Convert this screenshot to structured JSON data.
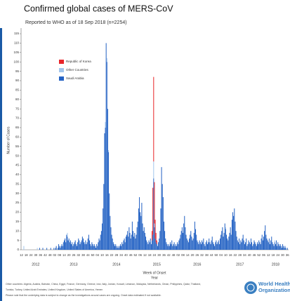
{
  "chart_data": {
    "type": "bar",
    "stacked": true,
    "title": "Confirmed global cases of MERS-CoV",
    "subtitle": "Reported to WHO as of 18 Sep 2018 (n=2254)",
    "y_label": "Number of Cases",
    "x_label": "Week of Onset",
    "x_label2": "Year",
    "ylim": [
      0,
      118
    ],
    "yticks": [
      0,
      5,
      10,
      15,
      20,
      25,
      30,
      35,
      40,
      45,
      50,
      55,
      60,
      65,
      70,
      75,
      80,
      85,
      90,
      95,
      100,
      105,
      110,
      115
    ],
    "grid": false,
    "legend": "upper-left",
    "categories": [
      "12",
      null,
      null,
      null,
      null,
      null,
      "18",
      null,
      null,
      null,
      null,
      null,
      "24",
      null,
      null,
      null,
      null,
      null,
      "30",
      null,
      null,
      null,
      null,
      null,
      "36",
      null,
      null,
      null,
      null,
      null,
      "42",
      null,
      null,
      null,
      null,
      null,
      "48",
      null,
      null,
      null,
      null,
      null,
      "02",
      null,
      null,
      null,
      null,
      null,
      "08",
      null,
      null,
      null,
      null,
      null,
      "14",
      null,
      null,
      null,
      null,
      null,
      "20",
      null,
      null,
      null,
      null,
      null,
      "26",
      null,
      null,
      null,
      null,
      null,
      "32",
      null,
      null,
      null,
      null,
      null,
      "38",
      null,
      null,
      null,
      null,
      null,
      "44",
      null,
      null,
      null,
      null,
      null,
      "50",
      null,
      null,
      null,
      null,
      null,
      "04",
      null,
      null,
      null,
      null,
      null,
      "10",
      null,
      null,
      null,
      null,
      null,
      "16",
      null,
      null,
      null,
      null,
      null,
      "22",
      null,
      null,
      null,
      null,
      null,
      "28",
      null,
      null,
      null,
      null,
      null,
      "34",
      null,
      null,
      null,
      null,
      null,
      "40",
      null,
      null,
      null,
      null,
      null,
      "46",
      null,
      null,
      null,
      null,
      null,
      "52",
      null,
      null,
      null,
      null,
      null,
      "06",
      null,
      null,
      null,
      null,
      null,
      "12",
      null,
      null,
      null,
      null,
      null,
      "18",
      null,
      null,
      null,
      null,
      null,
      "24",
      null,
      null,
      null,
      null,
      null,
      "30",
      null,
      null,
      null,
      null,
      null,
      "36",
      null,
      null,
      null,
      null,
      null,
      "42",
      null,
      null,
      null,
      null,
      null,
      "48",
      null,
      null,
      null,
      null,
      null,
      "02",
      null,
      null,
      null,
      null,
      null,
      "08",
      null,
      null,
      null,
      null,
      null,
      "14",
      null,
      null,
      null,
      null,
      null,
      "20",
      null,
      null,
      null,
      null,
      null,
      "26",
      null,
      null,
      null,
      null,
      null,
      "32",
      null,
      null,
      null,
      null,
      null,
      "38",
      null,
      null,
      null,
      null,
      null,
      "44",
      null,
      null,
      null,
      null,
      null,
      "50",
      null,
      null,
      null,
      null,
      null,
      "04",
      null,
      null,
      null,
      null,
      null,
      "10",
      null,
      null,
      null,
      null,
      null,
      "16",
      null,
      null,
      null,
      null,
      null,
      "22",
      null,
      null,
      null,
      null,
      null,
      "28",
      null,
      null,
      null,
      null,
      null,
      "34",
      null,
      null,
      null,
      null,
      null,
      "40",
      null,
      null,
      null,
      null,
      null,
      "46",
      null,
      null,
      null,
      null,
      null,
      "52",
      null,
      null,
      null,
      null,
      null,
      "06",
      null,
      null,
      null,
      null,
      null,
      "12",
      null,
      null,
      null,
      null,
      null,
      "18",
      null,
      null,
      null,
      null,
      null,
      "24",
      null,
      null,
      null,
      null,
      null,
      "30",
      null,
      null,
      null,
      null,
      null,
      "36",
      null
    ],
    "years": [
      "2012",
      "2013",
      "2014",
      "2015",
      "2016",
      "2017",
      "2018"
    ],
    "series": [
      {
        "name": "Saudi Arabia",
        "color": "#2563c4",
        "values": [
          0,
          0,
          0,
          0,
          0,
          0,
          0,
          0,
          0,
          0,
          0,
          0,
          0,
          0,
          0,
          0,
          0,
          0,
          0,
          0,
          0,
          0,
          0,
          1,
          0,
          0,
          0,
          1,
          0,
          0,
          0,
          0,
          1,
          0,
          0,
          0,
          0,
          1,
          0,
          0,
          0,
          1,
          0,
          1,
          2,
          0,
          1,
          3,
          2,
          1,
          2,
          3,
          2,
          4,
          5,
          6,
          4,
          8,
          7,
          5,
          6,
          4,
          5,
          3,
          4,
          2,
          3,
          4,
          5,
          3,
          2,
          4,
          6,
          5,
          3,
          4,
          5,
          7,
          6,
          4,
          3,
          5,
          3,
          4,
          6,
          8,
          5,
          3,
          2,
          4,
          3,
          2,
          3,
          2,
          1,
          3,
          2,
          4,
          6,
          5,
          8,
          10,
          14,
          22,
          35,
          62,
          65,
          110,
          100,
          75,
          52,
          30,
          18,
          12,
          8,
          6,
          4,
          3,
          2,
          3,
          2,
          1,
          2,
          1,
          2,
          3,
          2,
          4,
          3,
          5,
          6,
          4,
          7,
          8,
          10,
          7,
          12,
          9,
          6,
          8,
          15,
          10,
          7,
          9,
          6,
          8,
          12,
          15,
          22,
          28,
          20,
          18,
          25,
          14,
          10,
          12,
          9,
          7,
          5,
          4,
          3,
          5,
          4,
          6,
          3,
          5,
          8,
          38,
          12,
          6,
          4,
          3,
          2,
          4,
          6,
          10,
          22,
          44,
          35,
          28,
          15,
          10,
          6,
          4,
          3,
          2,
          3,
          2,
          4,
          3,
          5,
          2,
          3,
          4,
          2,
          3,
          2,
          4,
          3,
          5,
          6,
          8,
          10,
          12,
          9,
          14,
          18,
          12,
          8,
          6,
          5,
          4,
          6,
          8,
          10,
          7,
          5,
          6,
          9,
          15,
          11,
          8,
          5,
          4,
          3,
          5,
          4,
          3,
          5,
          4,
          6,
          3,
          2,
          4,
          5,
          3,
          4,
          6,
          4,
          3,
          5,
          7,
          4,
          3,
          2,
          4,
          5,
          3,
          4,
          5,
          3,
          6,
          8,
          10,
          12,
          7,
          9,
          14,
          11,
          8,
          6,
          5,
          7,
          9,
          12,
          8,
          16,
          20,
          18,
          22,
          15,
          10,
          7,
          5,
          4,
          6,
          3,
          5,
          4,
          6,
          8,
          5,
          3,
          4,
          6,
          2,
          3,
          5,
          4,
          3,
          6,
          4,
          2,
          3,
          5,
          4,
          3,
          2,
          4,
          3,
          5,
          4,
          3,
          6,
          8,
          5,
          7,
          10,
          13,
          8,
          6,
          5,
          4,
          6,
          3,
          5,
          7,
          4,
          3,
          2,
          4,
          3,
          5,
          2,
          4,
          3,
          2,
          3,
          2,
          1,
          3,
          2,
          1,
          2,
          1,
          0,
          1,
          0
        ]
      },
      {
        "name": "Other Countries",
        "color": "#a3c6ec",
        "values": [
          0,
          0,
          0,
          2,
          0,
          0,
          0,
          0,
          0,
          0,
          0,
          0,
          0,
          0,
          0,
          0,
          0,
          0,
          0,
          0,
          1,
          0,
          0,
          0,
          0,
          0,
          0,
          0,
          0,
          0,
          0,
          0,
          0,
          0,
          0,
          0,
          0,
          0,
          0,
          0,
          0,
          0,
          0,
          0,
          0,
          0,
          0,
          0,
          0,
          0,
          0,
          0,
          0,
          0,
          0,
          0,
          0,
          0,
          2,
          0,
          0,
          0,
          0,
          0,
          0,
          0,
          0,
          0,
          0,
          0,
          0,
          0,
          0,
          0,
          0,
          0,
          0,
          0,
          0,
          0,
          1,
          0,
          0,
          0,
          0,
          0,
          0,
          0,
          0,
          0,
          0,
          0,
          0,
          0,
          0,
          0,
          0,
          0,
          0,
          0,
          0,
          0,
          0,
          0,
          0,
          0,
          3,
          0,
          2,
          0,
          1,
          0,
          0,
          0,
          0,
          0,
          0,
          0,
          0,
          0,
          0,
          0,
          0,
          0,
          0,
          0,
          0,
          0,
          0,
          0,
          0,
          0,
          0,
          0,
          0,
          0,
          0,
          0,
          0,
          0,
          0,
          0,
          0,
          0,
          0,
          0,
          0,
          0,
          0,
          0,
          0,
          0,
          0,
          0,
          0,
          0,
          0,
          0,
          0,
          0,
          0,
          0,
          0,
          0,
          0,
          0,
          0,
          9,
          2,
          0,
          0,
          0,
          0,
          0,
          0,
          0,
          0,
          0,
          0,
          0,
          0,
          0,
          0,
          0,
          0,
          0,
          0,
          0,
          0,
          0,
          0,
          0,
          0,
          0,
          0,
          0,
          0,
          0,
          0,
          0,
          0,
          0,
          0,
          0,
          0,
          0,
          0,
          0,
          0,
          0,
          0,
          0,
          0,
          0,
          0,
          0,
          0,
          0,
          0,
          0,
          0,
          0,
          0,
          0,
          0,
          0,
          0,
          0,
          0,
          0,
          0,
          0,
          0,
          0,
          0,
          0,
          0,
          0,
          0,
          0,
          0,
          0,
          0,
          0,
          0,
          0,
          0,
          0,
          0,
          0,
          0,
          0,
          0,
          0,
          0,
          0,
          0,
          0,
          1,
          0,
          0,
          0,
          0,
          0,
          0,
          0,
          0,
          0,
          0,
          0,
          0,
          0,
          0,
          0,
          0,
          0,
          0,
          0,
          0,
          0,
          0,
          0,
          0,
          0,
          0,
          0,
          0,
          0,
          0,
          0,
          0,
          0,
          0,
          0,
          0,
          0,
          0,
          0,
          0,
          0,
          0,
          0,
          0,
          0,
          0,
          0,
          0,
          0,
          0,
          0,
          0,
          0,
          0,
          0,
          0,
          0,
          0,
          0,
          0,
          0,
          1,
          0,
          0,
          0,
          0,
          0,
          0,
          0,
          0,
          0,
          0,
          0,
          0,
          0,
          0,
          0,
          0,
          0
        ]
      },
      {
        "name": "Republic of Korea",
        "color": "#e8262a",
        "values": [
          0,
          0,
          0,
          0,
          0,
          0,
          0,
          0,
          0,
          0,
          0,
          0,
          0,
          0,
          0,
          0,
          0,
          0,
          0,
          0,
          0,
          0,
          0,
          0,
          0,
          0,
          0,
          0,
          0,
          0,
          0,
          0,
          0,
          0,
          0,
          0,
          0,
          0,
          0,
          0,
          0,
          0,
          0,
          0,
          0,
          0,
          0,
          0,
          0,
          0,
          0,
          0,
          0,
          0,
          0,
          0,
          0,
          0,
          0,
          0,
          0,
          0,
          0,
          0,
          0,
          0,
          0,
          0,
          0,
          0,
          0,
          0,
          0,
          0,
          0,
          0,
          0,
          0,
          0,
          0,
          0,
          0,
          0,
          0,
          0,
          0,
          0,
          0,
          0,
          0,
          0,
          0,
          0,
          0,
          0,
          0,
          0,
          0,
          0,
          0,
          0,
          0,
          0,
          0,
          0,
          0,
          0,
          0,
          0,
          0,
          0,
          0,
          0,
          0,
          0,
          0,
          0,
          0,
          0,
          0,
          0,
          0,
          0,
          0,
          0,
          0,
          0,
          0,
          0,
          0,
          0,
          0,
          0,
          0,
          0,
          0,
          0,
          0,
          0,
          0,
          0,
          0,
          0,
          0,
          0,
          0,
          0,
          0,
          0,
          0,
          0,
          0,
          0,
          0,
          0,
          0,
          0,
          0,
          0,
          0,
          0,
          0,
          0,
          0,
          0,
          5,
          25,
          45,
          22,
          10,
          5,
          2,
          0,
          0,
          0,
          0,
          0,
          0,
          0,
          0,
          0,
          0,
          0,
          0,
          0,
          0,
          0,
          0,
          0,
          0,
          0,
          0,
          0,
          0,
          0,
          0,
          0,
          0,
          0,
          0,
          0,
          0,
          0,
          0,
          0,
          0,
          0,
          0,
          0,
          0,
          0,
          0,
          0,
          0,
          0,
          0,
          0,
          0,
          0,
          0,
          0,
          0,
          0,
          0,
          0,
          0,
          0,
          0,
          0,
          0,
          0,
          0,
          0,
          0,
          0,
          0,
          0,
          0,
          0,
          0,
          0,
          0,
          0,
          0,
          0,
          0,
          0,
          0,
          0,
          0,
          0,
          0,
          0,
          0,
          0,
          0,
          0,
          0,
          0,
          0,
          0,
          0,
          0,
          0,
          0,
          0,
          0,
          0,
          0,
          0,
          0,
          0,
          0,
          0,
          0,
          0,
          0,
          0,
          0,
          0,
          0,
          0,
          0,
          0,
          0,
          0,
          0,
          0,
          0,
          0,
          0,
          0,
          0,
          0,
          0,
          0,
          0,
          0,
          0,
          0,
          0,
          0,
          0,
          0,
          0,
          0,
          0,
          0,
          0,
          0,
          0,
          0,
          0,
          0,
          0,
          0,
          0,
          0,
          0,
          0,
          0,
          0,
          0,
          0,
          0,
          0,
          0,
          0,
          0,
          0,
          0,
          0,
          0,
          0,
          0,
          0,
          0,
          0
        ]
      }
    ],
    "notes": [
      "Other countries: Algeria, Austria, Bahrain, China, Egypt, France, Germany, Greece, Iran, Italy, Jordan, Kuwait, Lebanon, Malaysia, Netherlands, Oman, Philippines, Qatar, Thailand,",
      "Tunisia, Turkey, United Arab Emirates, United Kingdom, United States of America, Yemen",
      "Please note that the underlying data is subject to change as the investigations around cases are ongoing. Onset data estimated if not available."
    ],
    "org": [
      "World Health",
      "Organization"
    ]
  }
}
